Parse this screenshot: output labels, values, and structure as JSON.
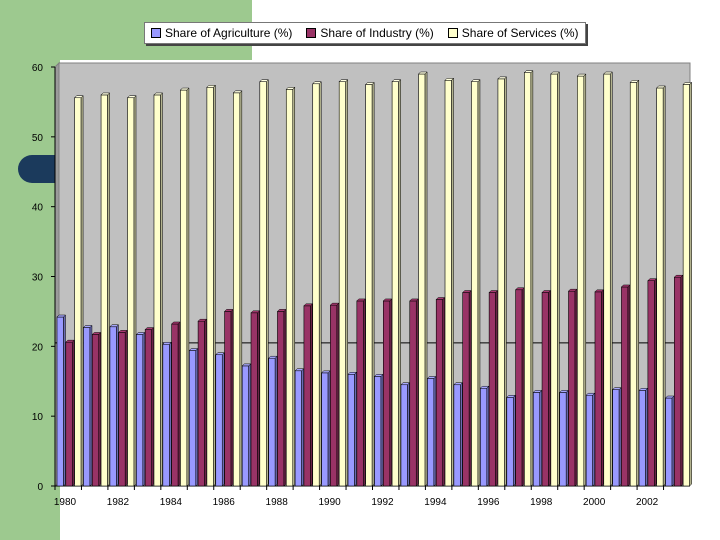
{
  "chart_data": {
    "type": "bar",
    "title": "",
    "xlabel": "",
    "ylabel": "",
    "ylim": [
      0,
      60
    ],
    "yticks": [
      0,
      10,
      20,
      30,
      40,
      50,
      60
    ],
    "categories": [
      "1980",
      "1981",
      "1982",
      "1983",
      "1984",
      "1985",
      "1986",
      "1987",
      "1988",
      "1989",
      "1990",
      "1991",
      "1992",
      "1993",
      "1994",
      "1995",
      "1996",
      "1997",
      "1998",
      "1999",
      "2000",
      "2001",
      "2002",
      "2003"
    ],
    "x_tick_labels": [
      "1980",
      "1982",
      "1984",
      "1986",
      "1988",
      "1990",
      "1992",
      "1994",
      "1996",
      "1998",
      "2000",
      "2002"
    ],
    "reference_line": 20.5,
    "legend_position": "top",
    "series": [
      {
        "name": "Share of Agriculture (%)",
        "color": "#9999ff",
        "values": [
          24.2,
          22.7,
          22.8,
          21.7,
          20.3,
          19.4,
          18.8,
          17.2,
          18.3,
          16.5,
          16.2,
          16.0,
          15.7,
          14.5,
          15.4,
          14.5,
          14.0,
          12.7,
          13.4,
          13.4,
          13.0,
          13.8,
          13.7,
          12.6
        ]
      },
      {
        "name": "Share of Industry (%)",
        "color": "#993366",
        "values": [
          20.6,
          21.7,
          22.0,
          22.4,
          23.2,
          23.6,
          25.0,
          24.8,
          25.0,
          25.8,
          25.9,
          26.5,
          26.5,
          26.5,
          26.7,
          27.7,
          27.7,
          28.1,
          27.7,
          27.9,
          27.8,
          28.5,
          29.4,
          29.9
        ]
      },
      {
        "name": "Share of Services (%)",
        "color": "#ffffcc",
        "values": [
          55.6,
          56.0,
          55.6,
          56.0,
          56.7,
          57.1,
          56.3,
          57.9,
          56.8,
          57.6,
          57.9,
          57.5,
          57.9,
          59.0,
          58.1,
          57.9,
          58.3,
          59.2,
          59.0,
          58.7,
          59.0,
          57.8,
          57.0,
          57.5
        ]
      }
    ]
  }
}
